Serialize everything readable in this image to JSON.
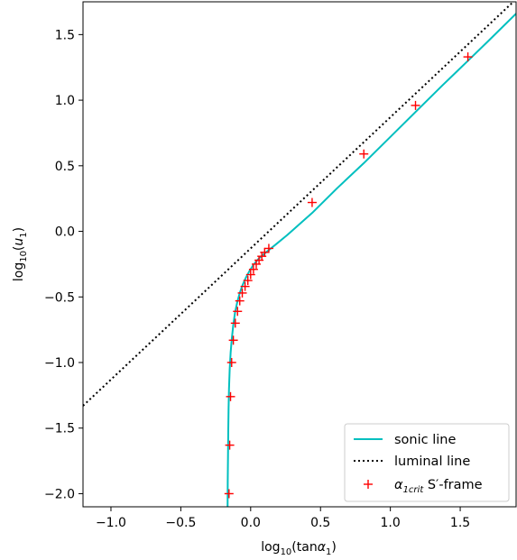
{
  "chart_data": {
    "type": "line",
    "xlabel_main": "log",
    "xlabel_sub": "10",
    "xlabel_rest": "(tan",
    "xlabel_alpha": "α",
    "xlabel_alpha_sub": "1",
    "xlabel_close": ")",
    "ylabel_main": "log",
    "ylabel_sub": "10",
    "ylabel_open": "(",
    "ylabel_u": "u",
    "ylabel_u_sub": "1",
    "ylabel_close": ")",
    "xlim": [
      -1.2,
      1.9
    ],
    "ylim": [
      -2.1,
      1.75
    ],
    "xticks": [
      -1.0,
      -0.5,
      0.0,
      0.5,
      1.0,
      1.5
    ],
    "xtick_labels": [
      "−1.0",
      "−0.5",
      "0.0",
      "0.5",
      "1.0",
      "1.5"
    ],
    "yticks": [
      -2.0,
      -1.5,
      -1.0,
      -0.5,
      0.0,
      0.5,
      1.0,
      1.5
    ],
    "ytick_labels": [
      "−2.0",
      "−1.5",
      "−1.0",
      "−0.5",
      "0.0",
      "0.5",
      "1.0",
      "1.5"
    ],
    "grid": false,
    "legend_position": "bottom-right",
    "series": [
      {
        "name": "sonic line",
        "style": "solid",
        "color": "#00bfbf",
        "x": [
          -0.165,
          -0.164,
          -0.162,
          -0.16,
          -0.158,
          -0.155,
          -0.15,
          -0.143,
          -0.135,
          -0.125,
          -0.112,
          -0.096,
          -0.078,
          -0.058,
          -0.035,
          -0.01,
          0.02,
          0.06,
          0.11,
          0.18,
          0.26,
          0.35,
          0.44,
          0.62,
          0.81,
          1.0,
          1.18,
          1.37,
          1.555,
          1.7,
          1.9
        ],
        "y": [
          -2.1,
          -1.9,
          -1.7,
          -1.5,
          -1.35,
          -1.2,
          -1.05,
          -0.92,
          -0.82,
          -0.72,
          -0.62,
          -0.54,
          -0.47,
          -0.41,
          -0.355,
          -0.305,
          -0.255,
          -0.205,
          -0.16,
          -0.1,
          -0.03,
          0.055,
          0.14,
          0.33,
          0.52,
          0.72,
          0.91,
          1.11,
          1.3,
          1.45,
          1.66
        ]
      },
      {
        "name": "luminal line",
        "style": "dotted",
        "color": "#000000",
        "x": [
          -1.2,
          1.9
        ],
        "y": [
          -1.33,
          1.77
        ]
      },
      {
        "name_main": "α",
        "name_sub": "1crit",
        "name_rest": " S′-frame",
        "style": "marker",
        "color": "#ff0000",
        "x": [
          -0.155,
          -0.15,
          -0.144,
          -0.136,
          -0.124,
          -0.11,
          -0.094,
          -0.078,
          -0.06,
          -0.04,
          -0.02,
          0.0,
          0.02,
          0.04,
          0.06,
          0.08,
          0.1,
          0.13,
          0.44,
          0.81,
          1.18,
          1.555
        ],
        "y": [
          -2.0,
          -1.63,
          -1.26,
          -1.0,
          -0.83,
          -0.7,
          -0.61,
          -0.53,
          -0.47,
          -0.42,
          -0.375,
          -0.33,
          -0.29,
          -0.25,
          -0.22,
          -0.19,
          -0.16,
          -0.13,
          0.22,
          0.59,
          0.96,
          1.33
        ]
      }
    ]
  }
}
